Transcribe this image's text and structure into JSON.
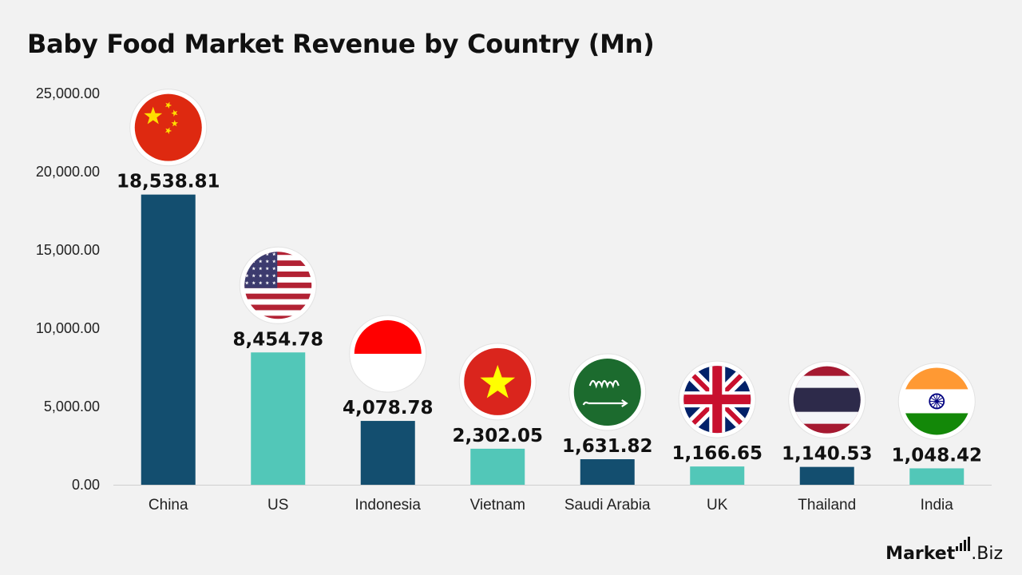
{
  "title": "Baby Food Market Revenue by Country (Mn)",
  "brand": {
    "part1": "Market",
    "part2": ".Biz"
  },
  "colors": {
    "dark": "#134e6f",
    "light": "#52c7b8"
  },
  "chart_data": {
    "type": "bar",
    "title": "Baby Food Market Revenue by Country (Mn)",
    "categories": [
      "China",
      "US",
      "Indonesia",
      "Vietnam",
      "Saudi Arabia",
      "UK",
      "Thailand",
      "India"
    ],
    "values": [
      18538.81,
      8454.78,
      4078.78,
      2302.05,
      1631.82,
      1166.65,
      1140.53,
      1048.42
    ],
    "value_labels": [
      "18,538.81",
      "8,454.78",
      "4,078.78",
      "2,302.05",
      "1,631.82",
      "1,166.65",
      "1,140.53",
      "1,048.42"
    ],
    "flags": [
      "china-flag",
      "us-flag",
      "indonesia-flag",
      "vietnam-flag",
      "saudi-arabia-flag",
      "uk-flag",
      "thailand-flag",
      "india-flag"
    ],
    "bar_colors": [
      "#134e6f",
      "#52c7b8",
      "#134e6f",
      "#52c7b8",
      "#134e6f",
      "#52c7b8",
      "#134e6f",
      "#52c7b8"
    ],
    "yticks": [
      "0.00",
      "5,000.00",
      "10,000.00",
      "15,000.00",
      "20,000.00",
      "25,000.00"
    ],
    "ytick_values": [
      0,
      5000,
      10000,
      15000,
      20000,
      25000
    ],
    "ylim": [
      0,
      25000
    ],
    "xlabel": "",
    "ylabel": "",
    "grid": false
  }
}
